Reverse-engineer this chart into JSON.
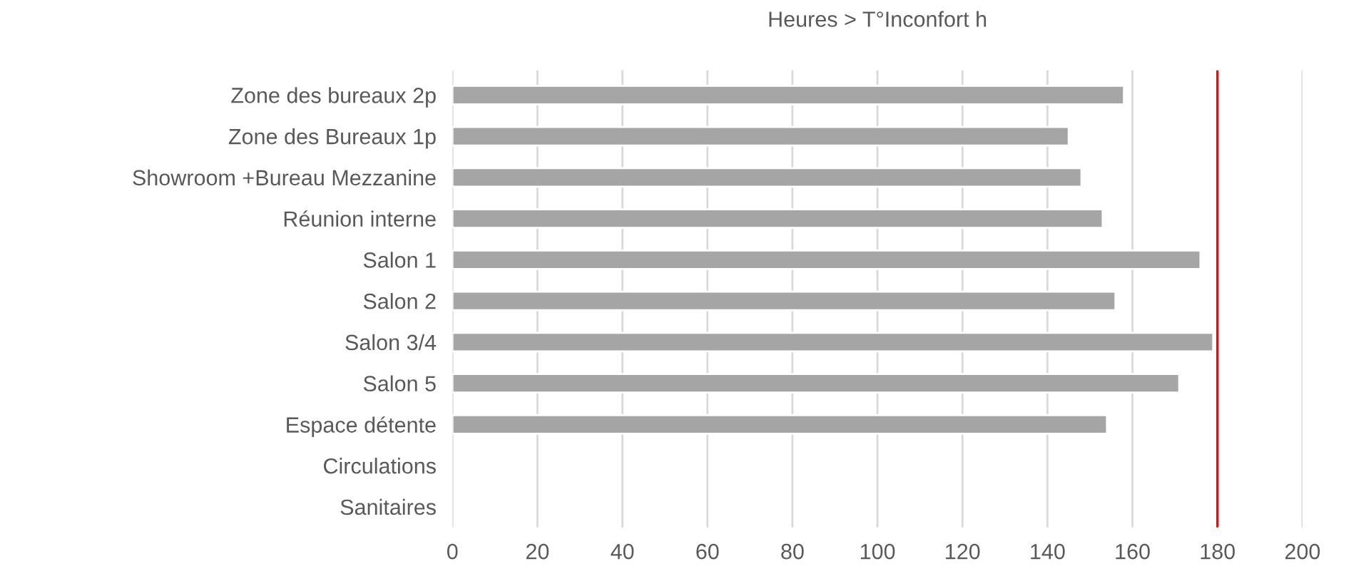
{
  "chart_data": {
    "type": "bar",
    "orientation": "horizontal",
    "title": "Heures > T°Inconfort h",
    "categories": [
      "Zone des bureaux 2p",
      "Zone des Bureaux 1p",
      "Showroom +Bureau Mezzanine",
      "Réunion interne",
      "Salon 1",
      "Salon 2",
      "Salon 3/4",
      "Salon 5",
      "Espace détente",
      "Circulations",
      "Sanitaires"
    ],
    "values": [
      158,
      145,
      148,
      153,
      176,
      156,
      179,
      171,
      154,
      null,
      null
    ],
    "color": "#a5a5a5",
    "xlim": [
      0,
      200
    ],
    "xticks": [
      0,
      20,
      40,
      60,
      80,
      100,
      120,
      140,
      160,
      180,
      200
    ],
    "grid": "x",
    "ref_lines": [
      {
        "axis": "x",
        "value": 180,
        "color": "#ff0000"
      }
    ]
  }
}
